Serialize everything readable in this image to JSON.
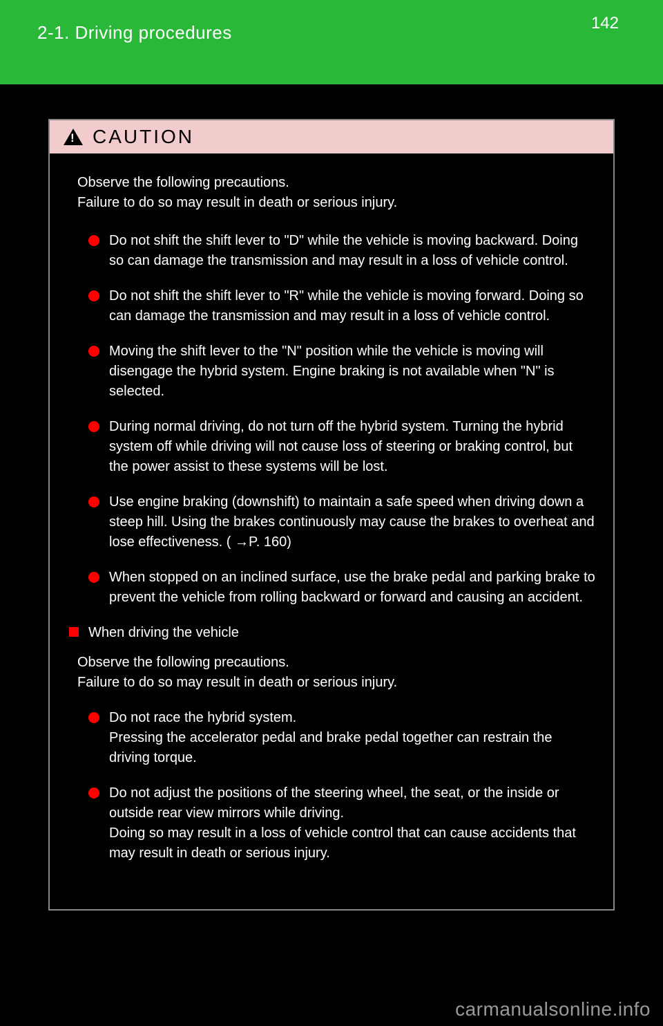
{
  "header": {
    "page_number": "142",
    "section": "2-1. Driving procedures"
  },
  "caution": {
    "title": "CAUTION",
    "intro": "Observe the following precautions.\nFailure to do so may result in death or serious injury.",
    "bullets": [
      "Do not shift the shift lever to \"D\" while the vehicle is moving backward. Doing so can damage the transmission and may result in a loss of vehicle control.",
      "Do not shift the shift lever to \"R\" while the vehicle is moving forward. Doing so can damage the transmission and may result in a loss of vehicle control.",
      "Moving the shift lever to the \"N\" position while the vehicle is moving will disengage the hybrid system. Engine braking is not available when \"N\" is selected.",
      "During normal driving, do not turn off the hybrid system. Turning the hybrid system off while driving will not cause loss of steering or braking control, but the power assist to these systems will be lost.",
      "Use engine braking (downshift) to maintain a safe speed when driving down a steep hill. Using the brakes continuously may cause the brakes to overheat and lose effectiveness. ( →P. 160)",
      "When stopped on an inclined surface, use the brake pedal and parking brake to prevent the vehicle from rolling backward or forward and causing an accident."
    ],
    "sub": {
      "heading": "When driving the vehicle",
      "intro": "Observe the following precautions.\nFailure to do so may result in death or serious injury.",
      "bullets": [
        "Do not race the hybrid system.\nPressing the accelerator pedal and brake pedal together can restrain the driving torque.",
        "Do not adjust the positions of the steering wheel, the seat, or the inside or outside rear view mirrors while driving.\nDoing so may result in a loss of vehicle control that can cause accidents that may result in death or serious injury."
      ]
    }
  },
  "watermark": "carmanualsonline.info",
  "colors": {
    "header_bg": "#29b837",
    "caution_header_bg": "#f2cccc",
    "bullet_color": "#ff0000",
    "page_bg": "#010101",
    "text_light": "#ffffff",
    "watermark_color": "#999999"
  }
}
